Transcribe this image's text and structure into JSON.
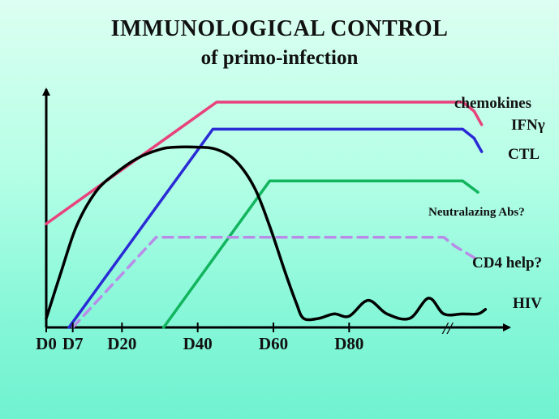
{
  "slide": {
    "title": "IMMUNOLOGICAL CONTROL",
    "subtitle": "of primo-infection"
  },
  "chart_data": {
    "type": "line",
    "title": "IMMUNOLOGICAL CONTROL",
    "subtitle": "of primo-infection",
    "xlabel": "",
    "ylabel": "",
    "x_tick_labels": [
      "D0",
      "D7",
      "D20",
      "D40",
      "D60",
      "D80"
    ],
    "x_tick_values": [
      0,
      7,
      20,
      40,
      60,
      80
    ],
    "axis_break_symbol": "//",
    "xlim": [
      0,
      120
    ],
    "ylim": [
      0,
      100
    ],
    "grid": false,
    "y_tick_labels": [],
    "series": [
      {
        "name": "chemokines",
        "color": "#e8427c",
        "style": "solid",
        "x": [
          0,
          45,
          110,
          113,
          115
        ],
        "y": [
          46,
          100,
          100,
          96,
          90
        ]
      },
      {
        "name": "IFNγ",
        "color": "#2b2bd6",
        "style": "solid",
        "x": [
          6,
          44,
          110,
          113,
          115
        ],
        "y": [
          0,
          88,
          88,
          84,
          78
        ]
      },
      {
        "name": "CTL",
        "color": "#2b2bd6",
        "style": "solid",
        "x": [],
        "y": []
      },
      {
        "name": "Neutralazing Abs?",
        "color": "#12b55e",
        "style": "solid",
        "x": [
          31,
          59,
          110,
          114
        ],
        "y": [
          0,
          65,
          65,
          60
        ]
      },
      {
        "name": "CD4 help?",
        "color": "#b98ce8",
        "style": "dashed",
        "x": [
          7,
          29,
          105,
          108,
          113
        ],
        "y": [
          0,
          40,
          40,
          36,
          31
        ]
      },
      {
        "name": "HIV",
        "color": "#000000",
        "style": "solid",
        "x": [
          0,
          4,
          8,
          13,
          18,
          24,
          30,
          34,
          40,
          45,
          50,
          55,
          59,
          63,
          66,
          68,
          72,
          76,
          80,
          85,
          90,
          96,
          101,
          105,
          110,
          114,
          116
        ],
        "y": [
          4,
          25,
          45,
          60,
          68,
          75,
          79,
          80,
          80,
          79,
          74,
          62,
          45,
          25,
          11,
          4,
          4,
          6,
          5,
          12,
          6,
          4,
          13,
          6,
          6,
          6,
          8
        ]
      }
    ]
  }
}
